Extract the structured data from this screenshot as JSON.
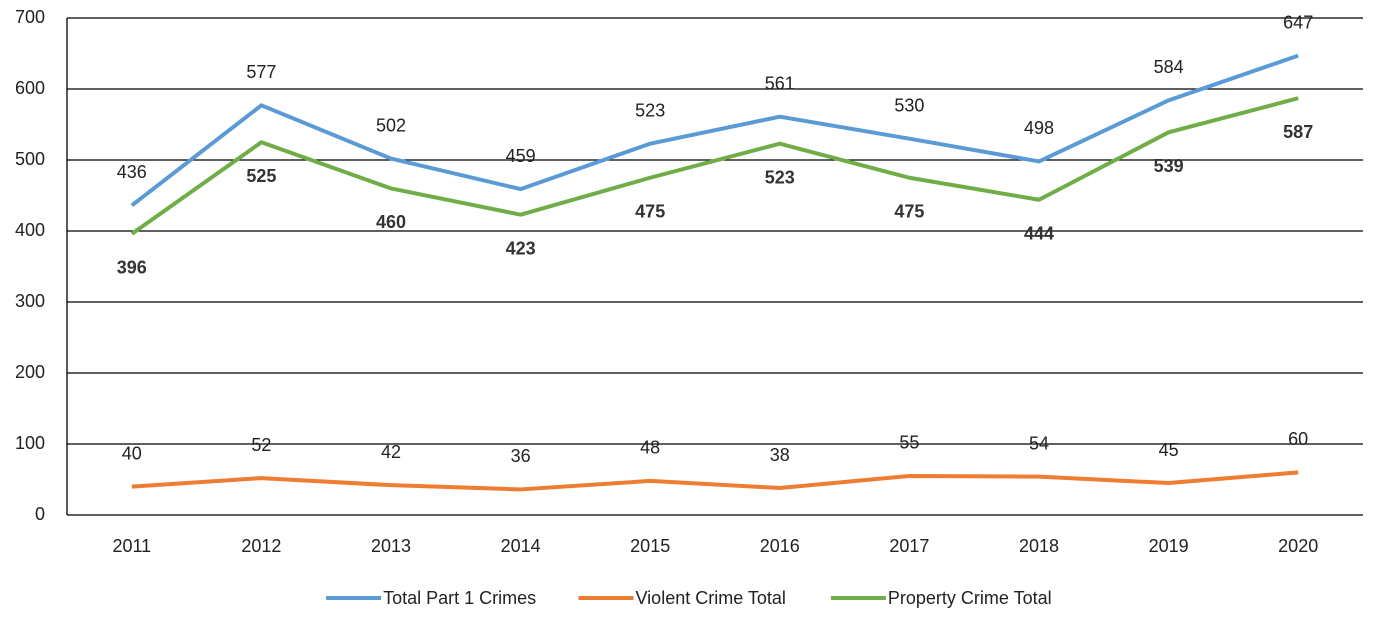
{
  "chart_data": {
    "type": "line",
    "categories": [
      "2011",
      "2012",
      "2013",
      "2014",
      "2015",
      "2016",
      "2017",
      "2018",
      "2019",
      "2020"
    ],
    "series": [
      {
        "name": "Total Part 1 Crimes",
        "color": "#5b9bd5",
        "values": [
          436,
          577,
          502,
          459,
          523,
          561,
          530,
          498,
          584,
          647
        ]
      },
      {
        "name": "Violent Crime Total",
        "color": "#ed7d31",
        "values": [
          40,
          52,
          42,
          36,
          48,
          38,
          55,
          54,
          45,
          60
        ]
      },
      {
        "name": "Property Crime Total",
        "color": "#70ad47",
        "values": [
          396,
          525,
          460,
          423,
          475,
          523,
          475,
          444,
          539,
          587
        ]
      }
    ],
    "ylim": [
      0,
      700
    ],
    "yticks": [
      0,
      100,
      200,
      300,
      400,
      500,
      600,
      700
    ],
    "grid": true,
    "legend": "bottom"
  }
}
